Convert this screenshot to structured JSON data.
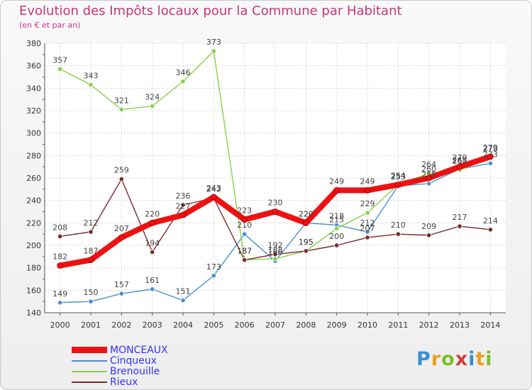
{
  "title": "Evolution des Impôts locaux pour la Commune par Habitant",
  "subtitle": "(en € et par an)",
  "logo": {
    "text": "Proxiti",
    "colors": [
      "#3a8fd0",
      "#e8a020",
      "#7bbf2a",
      "#d04040",
      "#3a8fd0",
      "#e8a020",
      "#7bbf2a"
    ]
  },
  "chart_data": {
    "type": "line",
    "title": "Evolution des Impôts locaux pour la Commune par Habitant",
    "subtitle": "(en € et par an)",
    "xlabel": "",
    "ylabel": "",
    "ylim": [
      140,
      380
    ],
    "yticks": [
      140,
      160,
      180,
      200,
      220,
      240,
      260,
      280,
      300,
      320,
      340,
      360,
      380
    ],
    "grid": true,
    "legend_position": "bottom-left",
    "categories": [
      "2000",
      "2001",
      "2002",
      "2003",
      "2004",
      "2005",
      "2006",
      "2007",
      "2008",
      "2009",
      "2010",
      "2011",
      "2012",
      "2013",
      "2014"
    ],
    "series": [
      {
        "name": "Cinqueux",
        "color": "#4a90cc",
        "values": [
          149,
          150,
          157,
          161,
          151,
          173,
          210,
          186,
          220,
          218,
          212,
          253,
          255,
          268,
          273
        ],
        "labels": [
          "149",
          "150",
          "157",
          "161",
          "151",
          "173",
          "210",
          "186",
          "220",
          "218",
          "212",
          "253",
          "255",
          "268",
          "273"
        ]
      },
      {
        "name": "Brenouille",
        "color": "#88d04a",
        "values": [
          357,
          343,
          321,
          324,
          346,
          373,
          187,
          188,
          195,
          215,
          229,
          254,
          264,
          267,
          278
        ],
        "labels": [
          "357",
          "343",
          "321",
          "324",
          "346",
          "373",
          "187",
          "188",
          "195",
          "215",
          "229",
          "254",
          "264",
          "267",
          "278"
        ]
      },
      {
        "name": "Rieux",
        "color": "#7a2a2a",
        "values": [
          208,
          212,
          259,
          194,
          236,
          242,
          187,
          192,
          195,
          200,
          207,
          210,
          209,
          217,
          214
        ],
        "labels": [
          "208",
          "212",
          "259",
          "194",
          "236",
          "242",
          "187",
          "192",
          "195",
          "200",
          "207",
          "210",
          "209",
          "217",
          "214"
        ]
      },
      {
        "name": "MONCEAUX",
        "color": "#ee1111",
        "values": [
          182,
          187,
          207,
          220,
          227,
          243,
          223,
          230,
          220,
          249,
          249,
          254,
          260,
          270,
          279
        ],
        "labels": [
          "182",
          "187",
          "207",
          "220",
          "227",
          "243",
          "223",
          "230",
          "220",
          "249",
          "249",
          "254",
          "260",
          "270",
          "279"
        ]
      }
    ],
    "legend": [
      {
        "name": "MONCEAUX",
        "color": "#ee1111",
        "label_color": "#3333ff",
        "thickness": 9
      },
      {
        "name": "Cinqueux",
        "color": "#4a90cc",
        "label_color": "#3333ff",
        "thickness": 2
      },
      {
        "name": "Brenouille",
        "color": "#88d04a",
        "label_color": "#3333ff",
        "thickness": 2
      },
      {
        "name": "Rieux",
        "color": "#7a2a2a",
        "label_color": "#3333ff",
        "thickness": 2
      }
    ]
  }
}
